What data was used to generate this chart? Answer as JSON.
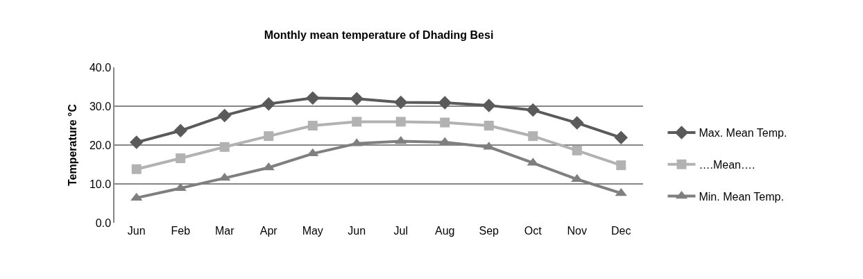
{
  "chart_data": {
    "type": "line",
    "title": "Monthly mean temperature of Dhading Besi",
    "ylabel": "Temperature °C",
    "categories": [
      "Jun",
      "Feb",
      "Mar",
      "Apr",
      "May",
      "Jun",
      "Jul",
      "Aug",
      "Sep",
      "Oct",
      "Nov",
      "Dec"
    ],
    "series": [
      {
        "name": "Max. Mean Temp.",
        "color": "#5a5a5a",
        "marker": "diamond",
        "values": [
          20.7,
          23.7,
          27.6,
          30.6,
          32.1,
          31.9,
          31.0,
          30.9,
          30.2,
          29.0,
          25.7,
          21.9
        ]
      },
      {
        "name": "….Mean….",
        "color": "#b2b2b2",
        "marker": "square",
        "values": [
          13.8,
          16.6,
          19.5,
          22.3,
          25.0,
          26.0,
          26.0,
          25.8,
          25.0,
          22.3,
          18.6,
          14.8
        ]
      },
      {
        "name": "Min. Mean Temp.",
        "color": "#7f7f7f",
        "marker": "triangle",
        "values": [
          6.4,
          8.9,
          11.5,
          14.2,
          17.8,
          20.4,
          21.0,
          20.7,
          19.5,
          15.4,
          11.2,
          7.6
        ]
      }
    ],
    "ylim": [
      0,
      40
    ],
    "yticks": [
      {
        "value": 0,
        "label": "0.0"
      },
      {
        "value": 10,
        "label": "10.0"
      },
      {
        "value": 20,
        "label": "20.0"
      },
      {
        "value": 30,
        "label": "30.0"
      },
      {
        "value": 40,
        "label": "40.0"
      }
    ],
    "grid": "y",
    "legend": "right",
    "line_style": "solid"
  }
}
